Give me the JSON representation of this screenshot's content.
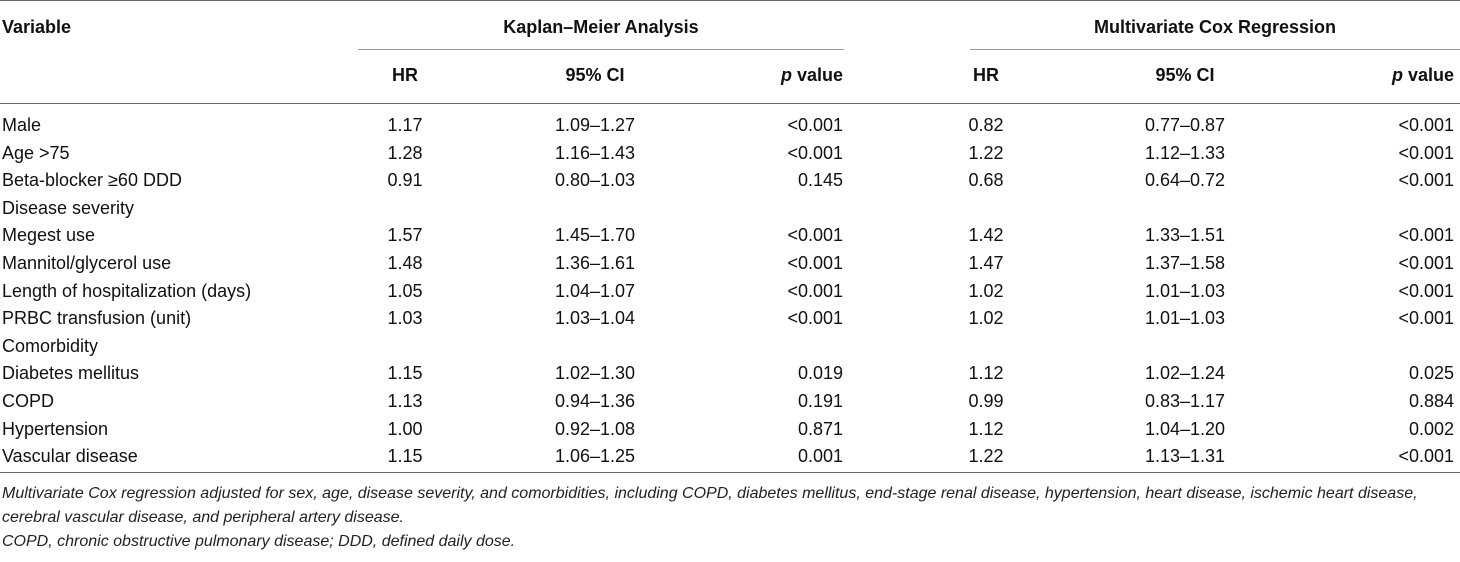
{
  "table": {
    "header": {
      "variable": "Variable",
      "group_km": "Kaplan–Meier Analysis",
      "group_cox": "Multivariate Cox Regression",
      "hr": "HR",
      "ci": "95% CI",
      "p_italic": "p",
      "p_rest": " value"
    },
    "rows": [
      {
        "variable": "Male",
        "hr1": "1.17",
        "ci1": "1.09–1.27",
        "p1": "<0.001",
        "hr2": "0.82",
        "ci2": "0.77–0.87",
        "p2": "<0.001"
      },
      {
        "variable": "Age >75",
        "hr1": "1.28",
        "ci1": "1.16–1.43",
        "p1": "<0.001",
        "hr2": "1.22",
        "ci2": "1.12–1.33",
        "p2": "<0.001"
      },
      {
        "variable": "Beta-blocker ≥60 DDD",
        "hr1": "0.91",
        "ci1": "0.80–1.03",
        "p1": "0.145",
        "hr2": "0.68",
        "ci2": "0.64–0.72",
        "p2": "<0.001"
      },
      {
        "variable": "Disease severity",
        "hr1": "",
        "ci1": "",
        "p1": "",
        "hr2": "",
        "ci2": "",
        "p2": ""
      },
      {
        "variable": "Megest use",
        "hr1": "1.57",
        "ci1": "1.45–1.70",
        "p1": "<0.001",
        "hr2": "1.42",
        "ci2": "1.33–1.51",
        "p2": "<0.001"
      },
      {
        "variable": "Mannitol/glycerol use",
        "hr1": "1.48",
        "ci1": "1.36–1.61",
        "p1": "<0.001",
        "hr2": "1.47",
        "ci2": "1.37–1.58",
        "p2": "<0.001"
      },
      {
        "variable": "Length of hospitalization (days)",
        "hr1": "1.05",
        "ci1": "1.04–1.07",
        "p1": "<0.001",
        "hr2": "1.02",
        "ci2": "1.01–1.03",
        "p2": "<0.001"
      },
      {
        "variable": "PRBC transfusion (unit)",
        "hr1": "1.03",
        "ci1": "1.03–1.04",
        "p1": "<0.001",
        "hr2": "1.02",
        "ci2": "1.01–1.03",
        "p2": "<0.001"
      },
      {
        "variable": "Comorbidity",
        "hr1": "",
        "ci1": "",
        "p1": "",
        "hr2": "",
        "ci2": "",
        "p2": ""
      },
      {
        "variable": "Diabetes mellitus",
        "hr1": "1.15",
        "ci1": "1.02–1.30",
        "p1": "0.019",
        "hr2": "1.12",
        "ci2": "1.02–1.24",
        "p2": "0.025"
      },
      {
        "variable": "COPD",
        "hr1": "1.13",
        "ci1": "0.94–1.36",
        "p1": "0.191",
        "hr2": "0.99",
        "ci2": "0.83–1.17",
        "p2": "0.884"
      },
      {
        "variable": "Hypertension",
        "hr1": "1.00",
        "ci1": "0.92–1.08",
        "p1": "0.871",
        "hr2": "1.12",
        "ci2": "1.04–1.20",
        "p2": "0.002"
      },
      {
        "variable": "Vascular disease",
        "hr1": "1.15",
        "ci1": "1.06–1.25",
        "p1": "0.001",
        "hr2": "1.22",
        "ci2": "1.13–1.31",
        "p2": "<0.001"
      }
    ]
  },
  "footnotes": {
    "note1": "Multivariate Cox regression adjusted for sex, age, disease severity, and comorbidities, including COPD, diabetes mellitus, end-stage renal disease, hypertension, heart disease, ischemic heart disease, cerebral vascular disease, and peripheral artery disease.",
    "note2": "COPD, chronic obstructive pulmonary disease; DDD, defined daily dose."
  }
}
